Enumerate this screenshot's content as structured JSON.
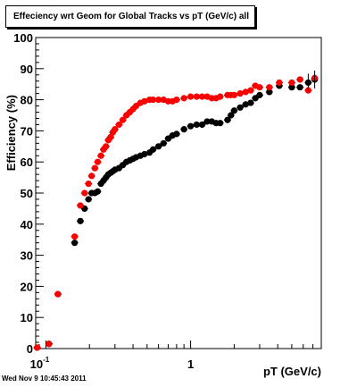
{
  "title": "Effeciency wrt Geom for Global Tracks vs pT (GeV/c) all",
  "timestamp": "Wed Nov  9 10:45:43 2011",
  "chart_data": {
    "type": "scatter",
    "title": "Effeciency wrt Geom for Global Tracks vs pT (GeV/c) all",
    "xlabel": "pT (GeV/c)",
    "ylabel": "Efficiency (%)",
    "xscale": "log",
    "xlim": [
      0.085,
      8.0
    ],
    "ylim": [
      0,
      100
    ],
    "xticks": [
      "10^-1",
      "1"
    ],
    "yticks": [
      0,
      10,
      20,
      30,
      40,
      50,
      60,
      70,
      80,
      90,
      100
    ],
    "grid": false,
    "legend": "none",
    "series": [
      {
        "color": "#000000",
        "points": [
          [
            0.087,
            0.3
          ],
          [
            0.105,
            1.5
          ],
          [
            0.121,
            17.5
          ],
          [
            0.158,
            34
          ],
          [
            0.173,
            41
          ],
          [
            0.185,
            45
          ],
          [
            0.197,
            48
          ],
          [
            0.207,
            50
          ],
          [
            0.218,
            50
          ],
          [
            0.228,
            50.5
          ],
          [
            0.24,
            53
          ],
          [
            0.25,
            54
          ],
          [
            0.26,
            55
          ],
          [
            0.27,
            56
          ],
          [
            0.28,
            56.5
          ],
          [
            0.29,
            57
          ],
          [
            0.3,
            57.5
          ],
          [
            0.32,
            58
          ],
          [
            0.34,
            59
          ],
          [
            0.36,
            60
          ],
          [
            0.38,
            60.5
          ],
          [
            0.4,
            61
          ],
          [
            0.42,
            61.5
          ],
          [
            0.45,
            62
          ],
          [
            0.48,
            62.5
          ],
          [
            0.52,
            63
          ],
          [
            0.55,
            64
          ],
          [
            0.6,
            65
          ],
          [
            0.65,
            66
          ],
          [
            0.7,
            67.5
          ],
          [
            0.75,
            68.5
          ],
          [
            0.8,
            69
          ],
          [
            0.9,
            70.5
          ],
          [
            1.0,
            71.5
          ],
          [
            1.1,
            72
          ],
          [
            1.2,
            72
          ],
          [
            1.3,
            73
          ],
          [
            1.4,
            73
          ],
          [
            1.5,
            72.5
          ],
          [
            1.6,
            72.5
          ],
          [
            1.8,
            73.5
          ],
          [
            1.9,
            75
          ],
          [
            2.0,
            76.5
          ],
          [
            2.2,
            77.5
          ],
          [
            2.4,
            78.5
          ],
          [
            2.6,
            79
          ],
          [
            2.8,
            80.5
          ],
          [
            3.0,
            81.5
          ],
          [
            3.5,
            82.5
          ],
          [
            4.1,
            84.5
          ],
          [
            5.0,
            84
          ],
          [
            5.7,
            84
          ],
          [
            6.5,
            85.5
          ],
          [
            7.2,
            86.5
          ]
        ]
      },
      {
        "color": "#ff0000",
        "points": [
          [
            0.087,
            0.3
          ],
          [
            0.105,
            1.5
          ],
          [
            0.121,
            17.5
          ],
          [
            0.158,
            36
          ],
          [
            0.173,
            46
          ],
          [
            0.185,
            50
          ],
          [
            0.197,
            53
          ],
          [
            0.207,
            55.5
          ],
          [
            0.218,
            58
          ],
          [
            0.228,
            60
          ],
          [
            0.24,
            62
          ],
          [
            0.25,
            64
          ],
          [
            0.26,
            65
          ],
          [
            0.27,
            67
          ],
          [
            0.28,
            68
          ],
          [
            0.29,
            69.5
          ],
          [
            0.3,
            70.5
          ],
          [
            0.32,
            72
          ],
          [
            0.34,
            73.5
          ],
          [
            0.36,
            75
          ],
          [
            0.38,
            76
          ],
          [
            0.4,
            77
          ],
          [
            0.42,
            78
          ],
          [
            0.45,
            79
          ],
          [
            0.48,
            79.5
          ],
          [
            0.52,
            80
          ],
          [
            0.55,
            80
          ],
          [
            0.6,
            80
          ],
          [
            0.65,
            80
          ],
          [
            0.7,
            79.5
          ],
          [
            0.75,
            79.5
          ],
          [
            0.8,
            80
          ],
          [
            0.9,
            80.5
          ],
          [
            1.0,
            81
          ],
          [
            1.1,
            81
          ],
          [
            1.2,
            81
          ],
          [
            1.3,
            81
          ],
          [
            1.4,
            80.5
          ],
          [
            1.5,
            80.5
          ],
          [
            1.6,
            81
          ],
          [
            1.8,
            81.5
          ],
          [
            1.9,
            81.5
          ],
          [
            2.0,
            81.5
          ],
          [
            2.2,
            82
          ],
          [
            2.4,
            82.5
          ],
          [
            2.6,
            83
          ],
          [
            2.8,
            84.5
          ],
          [
            3.0,
            84
          ],
          [
            3.5,
            84
          ],
          [
            4.1,
            85.5
          ],
          [
            5.0,
            85.5
          ],
          [
            5.7,
            86.5
          ],
          [
            6.5,
            83
          ],
          [
            7.2,
            87
          ]
        ]
      }
    ]
  }
}
